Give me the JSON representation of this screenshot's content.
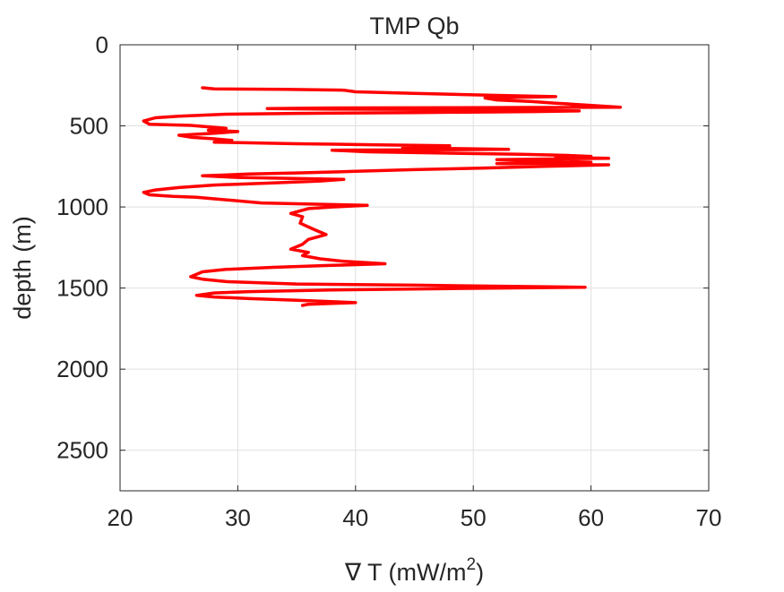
{
  "chart_data": {
    "type": "line",
    "title": "TMP Qb",
    "xlabel": "∇ T (mW/m",
    "xlabel_superscript": "2",
    "xlabel_suffix": ")",
    "ylabel": "depth (m)",
    "xlim": [
      20,
      70
    ],
    "ylim": [
      0,
      2750
    ],
    "y_reversed": true,
    "grid": true,
    "x_ticks": [
      20,
      30,
      40,
      50,
      60,
      70
    ],
    "y_ticks": [
      0,
      500,
      1000,
      1500,
      2000,
      2500
    ],
    "series": [
      {
        "color": "#ff0000",
        "points": [
          [
            27,
            265
          ],
          [
            28,
            272
          ],
          [
            34,
            275
          ],
          [
            39,
            280
          ],
          [
            40,
            290
          ],
          [
            45,
            300
          ],
          [
            52,
            312
          ],
          [
            57,
            320
          ],
          [
            51,
            328
          ],
          [
            52,
            340
          ],
          [
            55,
            350
          ],
          [
            57,
            360
          ],
          [
            62.5,
            385
          ],
          [
            48,
            388
          ],
          [
            37,
            390
          ],
          [
            32.5,
            393
          ],
          [
            38,
            397
          ],
          [
            50,
            400
          ],
          [
            59,
            408
          ],
          [
            55,
            412
          ],
          [
            45,
            418
          ],
          [
            35,
            423
          ],
          [
            29,
            428
          ],
          [
            25,
            440
          ],
          [
            23,
            450
          ],
          [
            22,
            470
          ],
          [
            22.5,
            490
          ],
          [
            26,
            497
          ],
          [
            29,
            515
          ],
          [
            27.5,
            527
          ],
          [
            30,
            535
          ],
          [
            28,
            545
          ],
          [
            25,
            558
          ],
          [
            26,
            570
          ],
          [
            28,
            580
          ],
          [
            29.5,
            590
          ],
          [
            28,
            600
          ],
          [
            35,
            610
          ],
          [
            42,
            617
          ],
          [
            48,
            623
          ],
          [
            44,
            635
          ],
          [
            53,
            645
          ],
          [
            38,
            650
          ],
          [
            41,
            660
          ],
          [
            48,
            668
          ],
          [
            54,
            675
          ],
          [
            58,
            682
          ],
          [
            60,
            688
          ],
          [
            57,
            693
          ],
          [
            61.5,
            700
          ],
          [
            52,
            708
          ],
          [
            56,
            716
          ],
          [
            60,
            724
          ],
          [
            52,
            732
          ],
          [
            61.5,
            740
          ],
          [
            56,
            750
          ],
          [
            51,
            760
          ],
          [
            45,
            770
          ],
          [
            40,
            780
          ],
          [
            35,
            790
          ],
          [
            31,
            797
          ],
          [
            27,
            808
          ],
          [
            30,
            818
          ],
          [
            39,
            830
          ],
          [
            37,
            840
          ],
          [
            33,
            852
          ],
          [
            28,
            865
          ],
          [
            25,
            880
          ],
          [
            23,
            895
          ],
          [
            22,
            910
          ],
          [
            22.5,
            925
          ],
          [
            24.5,
            935
          ],
          [
            26.5,
            940
          ],
          [
            28,
            950
          ],
          [
            32,
            975
          ],
          [
            38,
            985
          ],
          [
            41,
            990
          ],
          [
            38,
            1000
          ],
          [
            36,
            1010
          ],
          [
            34.5,
            1040
          ],
          [
            35.5,
            1060
          ],
          [
            35.3,
            1100
          ],
          [
            36.5,
            1140
          ],
          [
            37.5,
            1170
          ],
          [
            36,
            1200
          ],
          [
            35.5,
            1230
          ],
          [
            34.5,
            1260
          ],
          [
            36,
            1280
          ],
          [
            35.5,
            1300
          ],
          [
            37,
            1320
          ],
          [
            39,
            1335
          ],
          [
            42.5,
            1350
          ],
          [
            38,
            1360
          ],
          [
            33,
            1372
          ],
          [
            29,
            1385
          ],
          [
            27,
            1400
          ],
          [
            26.5,
            1415
          ],
          [
            26,
            1430
          ],
          [
            27,
            1445
          ],
          [
            29,
            1460
          ],
          [
            35,
            1475
          ],
          [
            45,
            1482
          ],
          [
            59.5,
            1495
          ],
          [
            48,
            1503
          ],
          [
            38,
            1512
          ],
          [
            31,
            1522
          ],
          [
            28,
            1530
          ],
          [
            26.5,
            1545
          ],
          [
            28,
            1555
          ],
          [
            31,
            1565
          ],
          [
            35,
            1575
          ],
          [
            40,
            1590
          ],
          [
            36,
            1600
          ],
          [
            35.5,
            1607
          ]
        ]
      }
    ]
  }
}
